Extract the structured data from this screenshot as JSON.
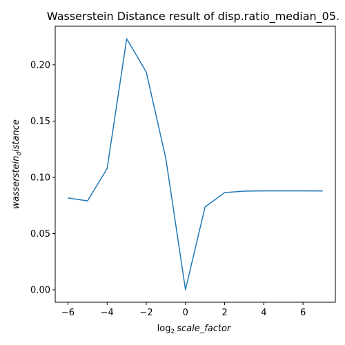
{
  "chart_data": {
    "type": "line",
    "title": "Wasserstein Distance result of disp.ratio_median_05.",
    "xlabel_prefix": "log",
    "xlabel_base": "2",
    "xlabel_var": "scale_factor",
    "ylabel_main": "wasserstein",
    "ylabel_sub": "d",
    "ylabel_tail": "istance",
    "x": [
      -6,
      -5,
      -4,
      -3,
      -2,
      -1,
      0,
      1,
      2,
      3,
      4,
      5,
      6,
      7
    ],
    "series": [
      {
        "values": [
          0.0817,
          0.0791,
          0.1078,
          0.2232,
          0.1935,
          0.1165,
          0.0002,
          0.0737,
          0.0864,
          0.0877,
          0.088,
          0.088,
          0.088,
          0.0879
        ],
        "color": "#1f77b4"
      }
    ],
    "xticks": [
      -6,
      -4,
      -2,
      0,
      2,
      4,
      6
    ],
    "xtick_labels": [
      "−6",
      "−4",
      "−2",
      "0",
      "2",
      "4",
      "6"
    ],
    "yticks": [
      0.0,
      0.05,
      0.1,
      0.15,
      0.2
    ],
    "ytick_labels": [
      "0.00",
      "0.05",
      "0.10",
      "0.15",
      "0.20"
    ],
    "xlim": [
      -6.65,
      7.65
    ],
    "ylim": [
      -0.011,
      0.2343
    ],
    "grid": false,
    "legend": false
  }
}
